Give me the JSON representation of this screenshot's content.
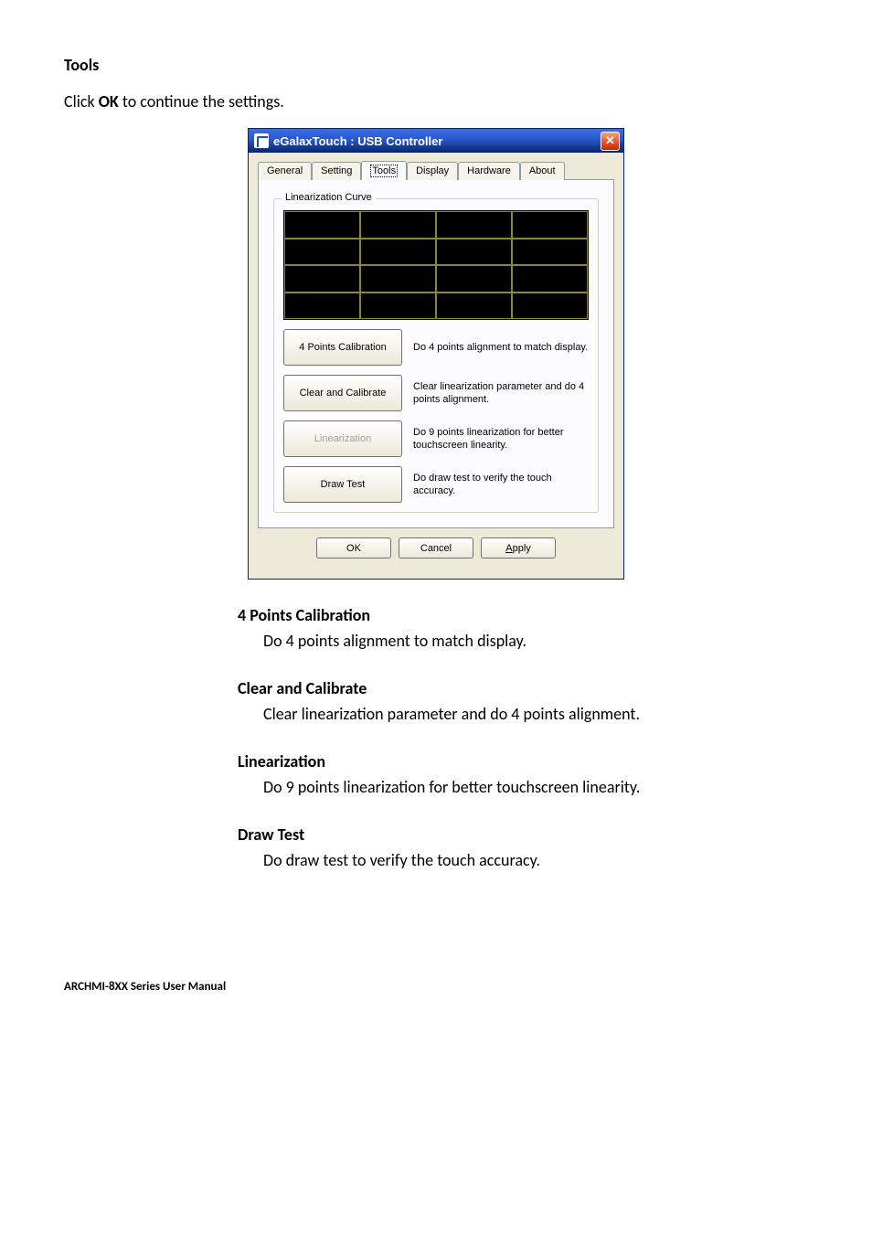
{
  "page": {
    "heading": "Tools",
    "instruction_pre": "Click ",
    "instruction_bold": "OK",
    "instruction_post": " to continue the settings.",
    "footer": "ARCHMI-8XX Series User Manual"
  },
  "dialog": {
    "title": "eGalaxTouch : USB Controller",
    "close_symbol": "✕",
    "tabs": [
      "General",
      "Setting",
      "Tools",
      "Display",
      "Hardware",
      "About"
    ],
    "active_tab_index": 2,
    "groupbox_label": "Linearization Curve",
    "tools": {
      "four_points": {
        "label": "4 Points Calibration",
        "desc": "Do 4 points alignment to match display."
      },
      "clear": {
        "label": "Clear and Calibrate",
        "desc": "Clear linearization parameter and do 4 points alignment."
      },
      "linearization": {
        "label": "Linearization",
        "desc": "Do 9 points linearization for better touchscreen linearity."
      },
      "draw": {
        "label": "Draw Test",
        "desc": "Do draw test to verify the touch accuracy."
      }
    },
    "buttons": {
      "ok": "OK",
      "cancel": "Cancel",
      "apply": "Apply",
      "apply_mnemonic": "A",
      "apply_rest": "pply"
    }
  },
  "explain": {
    "four_points": {
      "title": "4 Points Calibration",
      "desc": "Do 4 points alignment to match display."
    },
    "clear": {
      "title": "Clear and Calibrate",
      "desc": "Clear linearization parameter and do 4 points alignment."
    },
    "linearization": {
      "title": "Linearization",
      "desc": "Do 9 points linearization for better touchscreen linearity."
    },
    "draw": {
      "title": "Draw Test",
      "desc": "Do draw test to verify the touch accuracy."
    }
  }
}
